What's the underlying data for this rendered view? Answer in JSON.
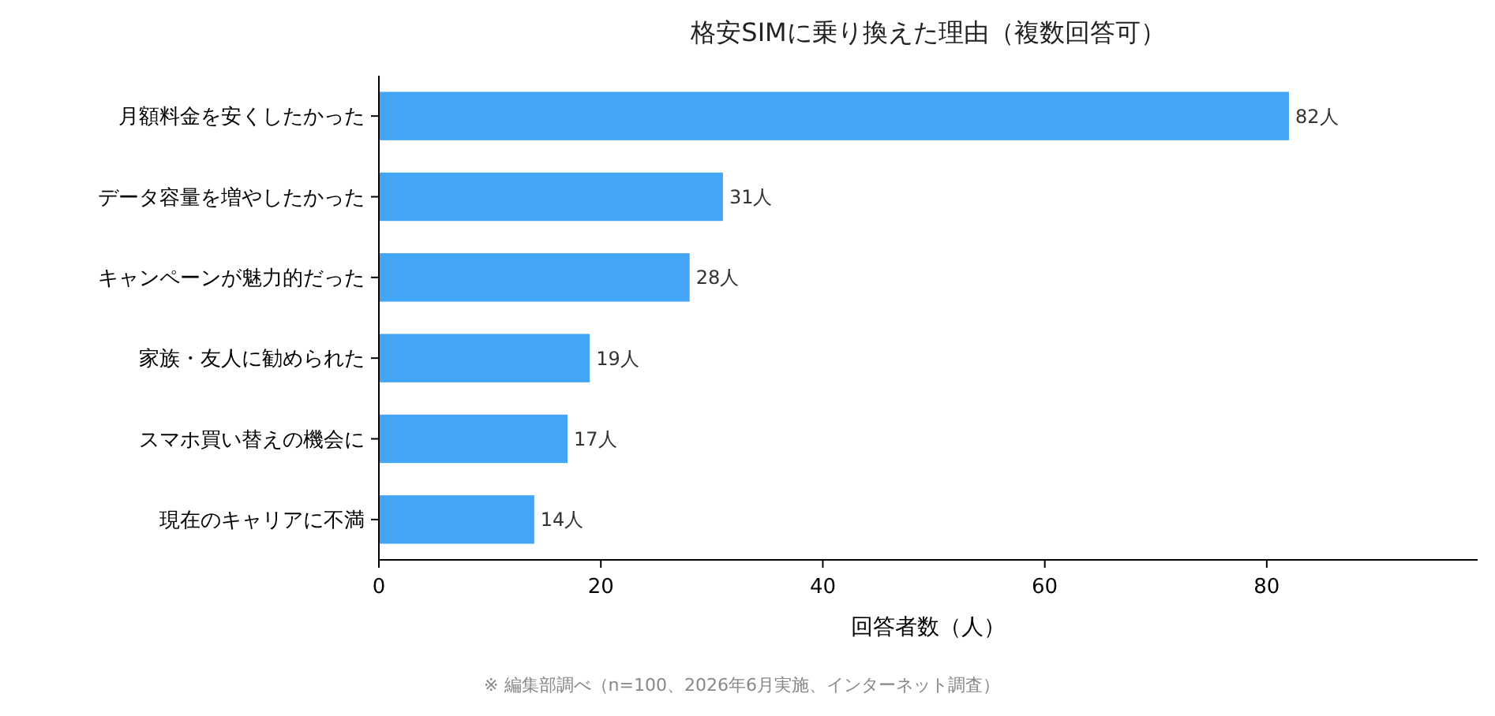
{
  "chart_data": {
    "type": "bar",
    "orientation": "horizontal",
    "title": "格安SIMに乗り換えた理由（複数回答可）",
    "xlabel": "回答者数（人）",
    "categories": [
      "月額料金を安くしたかった",
      "データ容量を増やしたかった",
      "キャンペーンが魅力的だった",
      "家族・友人に勧められた",
      "スマホ買い替えの機会に",
      "現在のキャリアに不満"
    ],
    "values": [
      82,
      31,
      28,
      19,
      17,
      14
    ],
    "value_labels": [
      "82人",
      "31人",
      "28人",
      "19人",
      "17人",
      "14人"
    ],
    "color": "#42a5f5",
    "xlim": [
      0,
      99
    ],
    "xticks": [
      0,
      20,
      40,
      60,
      80
    ],
    "annotations": [
      "※ 編集部調べ（n=100、2026年6月実施、インターネット調査）"
    ]
  }
}
